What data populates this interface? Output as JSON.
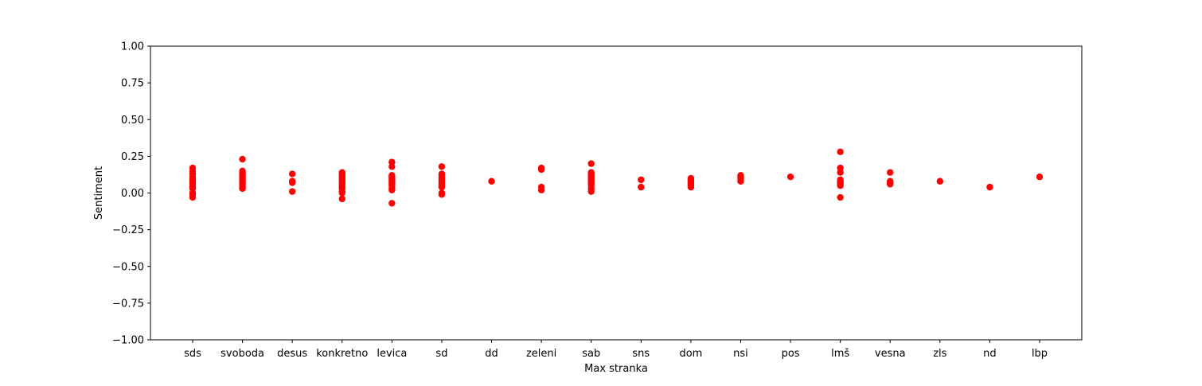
{
  "chart_data": {
    "type": "scatter",
    "xlabel": "Max stranka",
    "ylabel": "Sentiment",
    "ylim": [
      -1.0,
      1.0
    ],
    "yticks": [
      "−1.00",
      "−0.75",
      "−0.50",
      "−0.25",
      "0.00",
      "0.25",
      "0.50",
      "0.75",
      "1.00"
    ],
    "grid": false,
    "marker_color": "#ff0000",
    "categories": [
      "sds",
      "svoboda",
      "desus",
      "konkretno",
      "levica",
      "sd",
      "dd",
      "zeleni",
      "sab",
      "sns",
      "dom",
      "nsi",
      "pos",
      "lmš",
      "vesna",
      "zls",
      "nd",
      "lbp"
    ],
    "points": [
      {
        "category": "sds",
        "values": [
          0.17,
          0.15,
          0.13,
          0.11,
          0.1,
          0.09,
          0.08,
          0.07,
          0.06,
          0.05,
          0.04,
          0.03,
          0.0,
          -0.01,
          -0.03
        ]
      },
      {
        "category": "svoboda",
        "values": [
          0.23,
          0.15,
          0.14,
          0.13,
          0.12,
          0.11,
          0.1,
          0.09,
          0.08,
          0.07,
          0.06,
          0.05,
          0.04,
          0.03
        ]
      },
      {
        "category": "desus",
        "values": [
          0.13,
          0.08,
          0.07,
          0.01
        ]
      },
      {
        "category": "konkretno",
        "values": [
          0.14,
          0.13,
          0.12,
          0.11,
          0.1,
          0.09,
          0.08,
          0.07,
          0.06,
          0.05,
          0.04,
          0.03,
          0.01,
          0.0,
          -0.04
        ]
      },
      {
        "category": "levica",
        "values": [
          0.21,
          0.18,
          0.12,
          0.11,
          0.1,
          0.09,
          0.08,
          0.07,
          0.06,
          0.05,
          0.03,
          0.02,
          -0.07
        ]
      },
      {
        "category": "sd",
        "values": [
          0.18,
          0.13,
          0.12,
          0.11,
          0.1,
          0.09,
          0.08,
          0.07,
          0.06,
          0.05,
          0.04,
          0.0,
          -0.01
        ]
      },
      {
        "category": "dd",
        "values": [
          0.08
        ]
      },
      {
        "category": "zeleni",
        "values": [
          0.17,
          0.16,
          0.04,
          0.02
        ]
      },
      {
        "category": "sab",
        "values": [
          0.2,
          0.14,
          0.13,
          0.12,
          0.11,
          0.1,
          0.09,
          0.08,
          0.07,
          0.06,
          0.05,
          0.03,
          0.01
        ]
      },
      {
        "category": "sns",
        "values": [
          0.09,
          0.04
        ]
      },
      {
        "category": "dom",
        "values": [
          0.1,
          0.09,
          0.08,
          0.07,
          0.06,
          0.05,
          0.04
        ]
      },
      {
        "category": "nsi",
        "values": [
          0.12,
          0.11,
          0.1,
          0.09,
          0.08
        ]
      },
      {
        "category": "pos",
        "values": [
          0.11
        ]
      },
      {
        "category": "lmš",
        "values": [
          0.28,
          0.17,
          0.14,
          0.09,
          0.08,
          0.07,
          0.06,
          0.05,
          -0.03
        ]
      },
      {
        "category": "vesna",
        "values": [
          0.14,
          0.08,
          0.07,
          0.06
        ]
      },
      {
        "category": "zls",
        "values": [
          0.08
        ]
      },
      {
        "category": "nd",
        "values": [
          0.04
        ]
      },
      {
        "category": "lbp",
        "values": [
          0.11
        ]
      }
    ]
  }
}
